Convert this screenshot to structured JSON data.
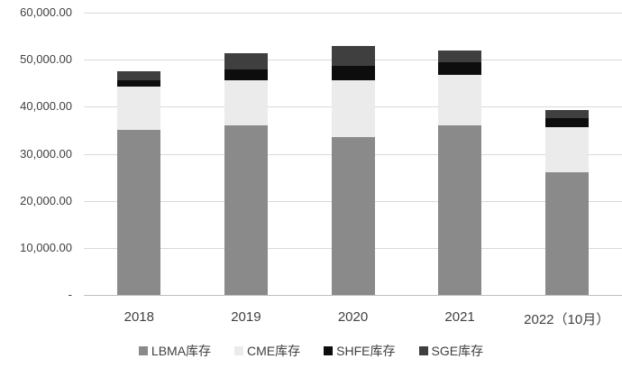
{
  "chart_data": {
    "type": "bar",
    "stacked": true,
    "title": "",
    "xlabel": "",
    "ylabel": "",
    "categories": [
      "2018",
      "2019",
      "2020",
      "2021",
      "2022（10月）"
    ],
    "series": [
      {
        "name": "LBMA库存",
        "color": "#8a8a8a",
        "values": [
          35000,
          36000,
          33500,
          36100,
          26100
        ]
      },
      {
        "name": "CME库存",
        "color": "#ebebeb",
        "values": [
          9200,
          9700,
          12200,
          10700,
          9600
        ]
      },
      {
        "name": "SHFE库存",
        "color": "#0d0d0d",
        "values": [
          1400,
          2200,
          3000,
          2700,
          1800
        ]
      },
      {
        "name": "SGE库存",
        "color": "#3f3f3f",
        "values": [
          1900,
          3400,
          4300,
          2400,
          1800
        ]
      }
    ],
    "totals": [
      47500,
      51300,
      53000,
      51900,
      39300
    ],
    "ylim": [
      0,
      60000
    ],
    "ytick_step": 10000,
    "ytick_labels": [
      "-",
      "10,000.00",
      "20,000.00",
      "30,000.00",
      "40,000.00",
      "50,000.00",
      "60,000.00"
    ],
    "grid": true,
    "legend_position": "bottom"
  },
  "colors": {
    "gridline": "#d9d9d9",
    "axis_line": "#bfbfbf",
    "text": "#404040",
    "background": "#ffffff"
  }
}
